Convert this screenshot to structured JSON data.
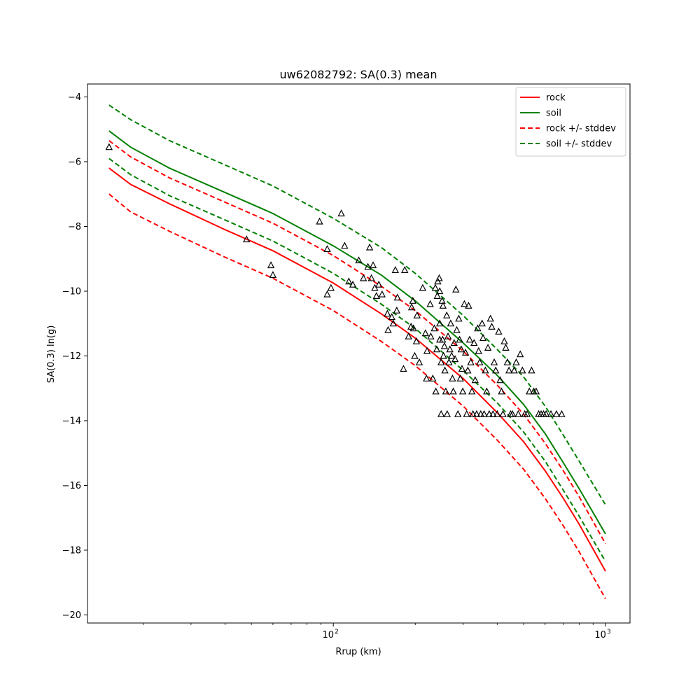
{
  "chart_data": {
    "type": "line",
    "title": "uw62082792: SA(0.3) mean",
    "xlabel": "Rrup (km)",
    "ylabel": "SA(0.3) ln(g)",
    "xscale": "log",
    "xlim": [
      12.5,
      1230
    ],
    "ylim": [
      -20.25,
      -3.6
    ],
    "x_ticks": [
      {
        "value": 100,
        "base": "10",
        "exp": "2"
      },
      {
        "value": 1000,
        "base": "10",
        "exp": "3"
      }
    ],
    "y_ticks": [
      {
        "value": -4,
        "label": "−4"
      },
      {
        "value": -6,
        "label": "−6"
      },
      {
        "value": -8,
        "label": "−8"
      },
      {
        "value": -10,
        "label": "−10"
      },
      {
        "value": -12,
        "label": "−12"
      },
      {
        "value": -14,
        "label": "−14"
      },
      {
        "value": -16,
        "label": "−16"
      },
      {
        "value": -18,
        "label": "−18"
      },
      {
        "value": -20,
        "label": "−20"
      }
    ],
    "grid": false,
    "legend_position": "top-right",
    "series": [
      {
        "name": "rock",
        "color": "#ff0000",
        "style": "solid",
        "x": [
          15,
          18,
          25,
          40,
          60,
          100,
          150,
          200,
          300,
          400,
          500,
          600,
          700,
          800,
          1000
        ],
        "y": [
          -6.2,
          -6.7,
          -7.3,
          -8.1,
          -8.75,
          -9.75,
          -10.7,
          -11.45,
          -12.7,
          -13.75,
          -14.65,
          -15.55,
          -16.4,
          -17.2,
          -18.65
        ]
      },
      {
        "name": "soil",
        "color": "#008000",
        "style": "solid",
        "x": [
          15,
          18,
          25,
          40,
          60,
          100,
          150,
          200,
          300,
          400,
          500,
          600,
          700,
          800,
          1000
        ],
        "y": [
          -5.05,
          -5.55,
          -6.2,
          -6.95,
          -7.6,
          -8.6,
          -9.5,
          -10.3,
          -11.6,
          -12.6,
          -13.5,
          -14.4,
          -15.3,
          -16.1,
          -17.5
        ]
      },
      {
        "name": "rock +/- stddev",
        "color": "#ff0000",
        "style": "dashed",
        "x": [
          15,
          18,
          25,
          40,
          60,
          100,
          150,
          200,
          300,
          400,
          500,
          600,
          700,
          800,
          1000
        ],
        "y": [
          -7.0,
          -7.55,
          -8.15,
          -8.95,
          -9.6,
          -10.6,
          -11.55,
          -12.3,
          -13.55,
          -14.6,
          -15.5,
          -16.4,
          -17.25,
          -18.05,
          -19.5
        ]
      },
      {
        "name": "",
        "color": "#ff0000",
        "style": "dashed",
        "x": [
          15,
          18,
          25,
          40,
          60,
          100,
          150,
          200,
          300,
          400,
          500,
          600,
          700,
          800,
          1000
        ],
        "y": [
          -5.35,
          -5.85,
          -6.5,
          -7.25,
          -7.9,
          -8.9,
          -9.85,
          -10.6,
          -11.85,
          -12.9,
          -13.8,
          -14.7,
          -15.55,
          -16.35,
          -17.8
        ]
      },
      {
        "name": "soil +/- stddev",
        "color": "#008000",
        "style": "dashed",
        "x": [
          15,
          18,
          25,
          40,
          60,
          100,
          150,
          200,
          300,
          400,
          500,
          600,
          700,
          800,
          1000
        ],
        "y": [
          -4.25,
          -4.7,
          -5.35,
          -6.1,
          -6.75,
          -7.75,
          -8.65,
          -9.45,
          -10.75,
          -11.8,
          -12.65,
          -13.55,
          -14.45,
          -15.25,
          -16.6
        ]
      },
      {
        "name": "",
        "color": "#008000",
        "style": "dashed",
        "x": [
          15,
          18,
          25,
          40,
          60,
          100,
          150,
          200,
          300,
          400,
          500,
          600,
          700,
          800,
          1000
        ],
        "y": [
          -5.9,
          -6.4,
          -7.05,
          -7.8,
          -8.45,
          -9.45,
          -10.4,
          -11.15,
          -12.45,
          -13.45,
          -14.35,
          -15.25,
          -16.15,
          -16.95,
          -18.35
        ]
      }
    ],
    "observations": {
      "marker": "triangle",
      "points": [
        [
          15,
          -5.55
        ],
        [
          48,
          -8.4
        ],
        [
          59,
          -9.2
        ],
        [
          60,
          -9.5
        ],
        [
          89,
          -7.85
        ],
        [
          95,
          -8.7
        ],
        [
          95,
          -10.1
        ],
        [
          98,
          -9.9
        ],
        [
          107,
          -7.6
        ],
        [
          110,
          -8.6
        ],
        [
          114,
          -9.7
        ],
        [
          118,
          -9.8
        ],
        [
          124,
          -9.05
        ],
        [
          129,
          -9.6
        ],
        [
          134,
          -9.25
        ],
        [
          136,
          -8.65
        ],
        [
          138,
          -9.6
        ],
        [
          140,
          -9.2
        ],
        [
          142,
          -9.9
        ],
        [
          144,
          -10.15
        ],
        [
          147,
          -9.8
        ],
        [
          151,
          -10.1
        ],
        [
          158,
          -10.7
        ],
        [
          159,
          -11.2
        ],
        [
          164,
          -10.8
        ],
        [
          166,
          -11.0
        ],
        [
          169,
          -9.35
        ],
        [
          171,
          -10.6
        ],
        [
          172,
          -10.2
        ],
        [
          181,
          -12.4
        ],
        [
          183,
          -9.35
        ],
        [
          189,
          -11.4
        ],
        [
          193,
          -11.1
        ],
        [
          194,
          -10.5
        ],
        [
          196,
          -10.3
        ],
        [
          197,
          -11.15
        ],
        [
          199,
          -12.0
        ],
        [
          202,
          -11.55
        ],
        [
          203,
          -10.75
        ],
        [
          207,
          -12.2
        ],
        [
          213,
          -9.9
        ],
        [
          218,
          -11.3
        ],
        [
          220,
          -12.7
        ],
        [
          221,
          -11.85
        ],
        [
          227,
          -10.4
        ],
        [
          228,
          -11.4
        ],
        [
          232,
          -12.7
        ],
        [
          235,
          -11.15
        ],
        [
          237,
          -9.9
        ],
        [
          238,
          -13.1
        ],
        [
          240,
          -11.8
        ],
        [
          241,
          -10.15
        ],
        [
          242,
          -9.7
        ],
        [
          245,
          -9.6
        ],
        [
          246,
          -10.0
        ],
        [
          246,
          -11.0
        ],
        [
          246,
          -11.5
        ],
        [
          249,
          -12.2
        ],
        [
          249,
          -13.8
        ],
        [
          251,
          -10.3
        ],
        [
          252,
          -11.5
        ],
        [
          253,
          -10.45
        ],
        [
          254,
          -12.0
        ],
        [
          256,
          -11.7
        ],
        [
          257,
          -12.45
        ],
        [
          259,
          -13.1
        ],
        [
          261,
          -10.75
        ],
        [
          262,
          -13.8
        ],
        [
          264,
          -11.4
        ],
        [
          266,
          -12.2
        ],
        [
          268,
          -11.8
        ],
        [
          270,
          -11.0
        ],
        [
          272,
          -12.0
        ],
        [
          274,
          -12.7
        ],
        [
          276,
          -13.1
        ],
        [
          278,
          -11.6
        ],
        [
          280,
          -12.1
        ],
        [
          282,
          -9.95
        ],
        [
          284,
          -11.2
        ],
        [
          287,
          -13.8
        ],
        [
          289,
          -10.85
        ],
        [
          291,
          -11.5
        ],
        [
          293,
          -12.7
        ],
        [
          295,
          -11.8
        ],
        [
          297,
          -12.4
        ],
        [
          299,
          -13.1
        ],
        [
          303,
          -10.4
        ],
        [
          306,
          -11.9
        ],
        [
          309,
          -13.8
        ],
        [
          312,
          -12.45
        ],
        [
          314,
          -10.45
        ],
        [
          317,
          -11.5
        ],
        [
          320,
          -12.2
        ],
        [
          323,
          -13.1
        ],
        [
          326,
          -13.8
        ],
        [
          329,
          -11.6
        ],
        [
          332,
          -12.75
        ],
        [
          336,
          -13.8
        ],
        [
          339,
          -11.15
        ],
        [
          342,
          -11.85
        ],
        [
          345,
          -12.2
        ],
        [
          348,
          -13.8
        ],
        [
          352,
          -11.0
        ],
        [
          355,
          -11.45
        ],
        [
          358,
          -13.8
        ],
        [
          362,
          -12.45
        ],
        [
          366,
          -13.1
        ],
        [
          370,
          -11.75
        ],
        [
          374,
          -13.8
        ],
        [
          378,
          -10.85
        ],
        [
          382,
          -11.1
        ],
        [
          386,
          -13.8
        ],
        [
          390,
          -12.2
        ],
        [
          395,
          -12.45
        ],
        [
          400,
          -13.8
        ],
        [
          405,
          -11.25
        ],
        [
          410,
          -12.75
        ],
        [
          415,
          -13.1
        ],
        [
          420,
          -13.8
        ],
        [
          425,
          -11.55
        ],
        [
          430,
          -11.75
        ],
        [
          436,
          -12.2
        ],
        [
          442,
          -12.45
        ],
        [
          448,
          -13.8
        ],
        [
          455,
          -13.8
        ],
        [
          462,
          -12.45
        ],
        [
          470,
          -12.2
        ],
        [
          478,
          -13.8
        ],
        [
          486,
          -11.95
        ],
        [
          495,
          -12.45
        ],
        [
          505,
          -13.8
        ],
        [
          515,
          -13.8
        ],
        [
          525,
          -13.1
        ],
        [
          535,
          -12.45
        ],
        [
          545,
          -13.1
        ],
        [
          556,
          -13.1
        ],
        [
          568,
          -13.8
        ],
        [
          580,
          -13.8
        ],
        [
          592,
          -13.8
        ],
        [
          605,
          -13.8
        ],
        [
          630,
          -13.8
        ],
        [
          660,
          -13.8
        ],
        [
          690,
          -13.8
        ]
      ]
    }
  }
}
